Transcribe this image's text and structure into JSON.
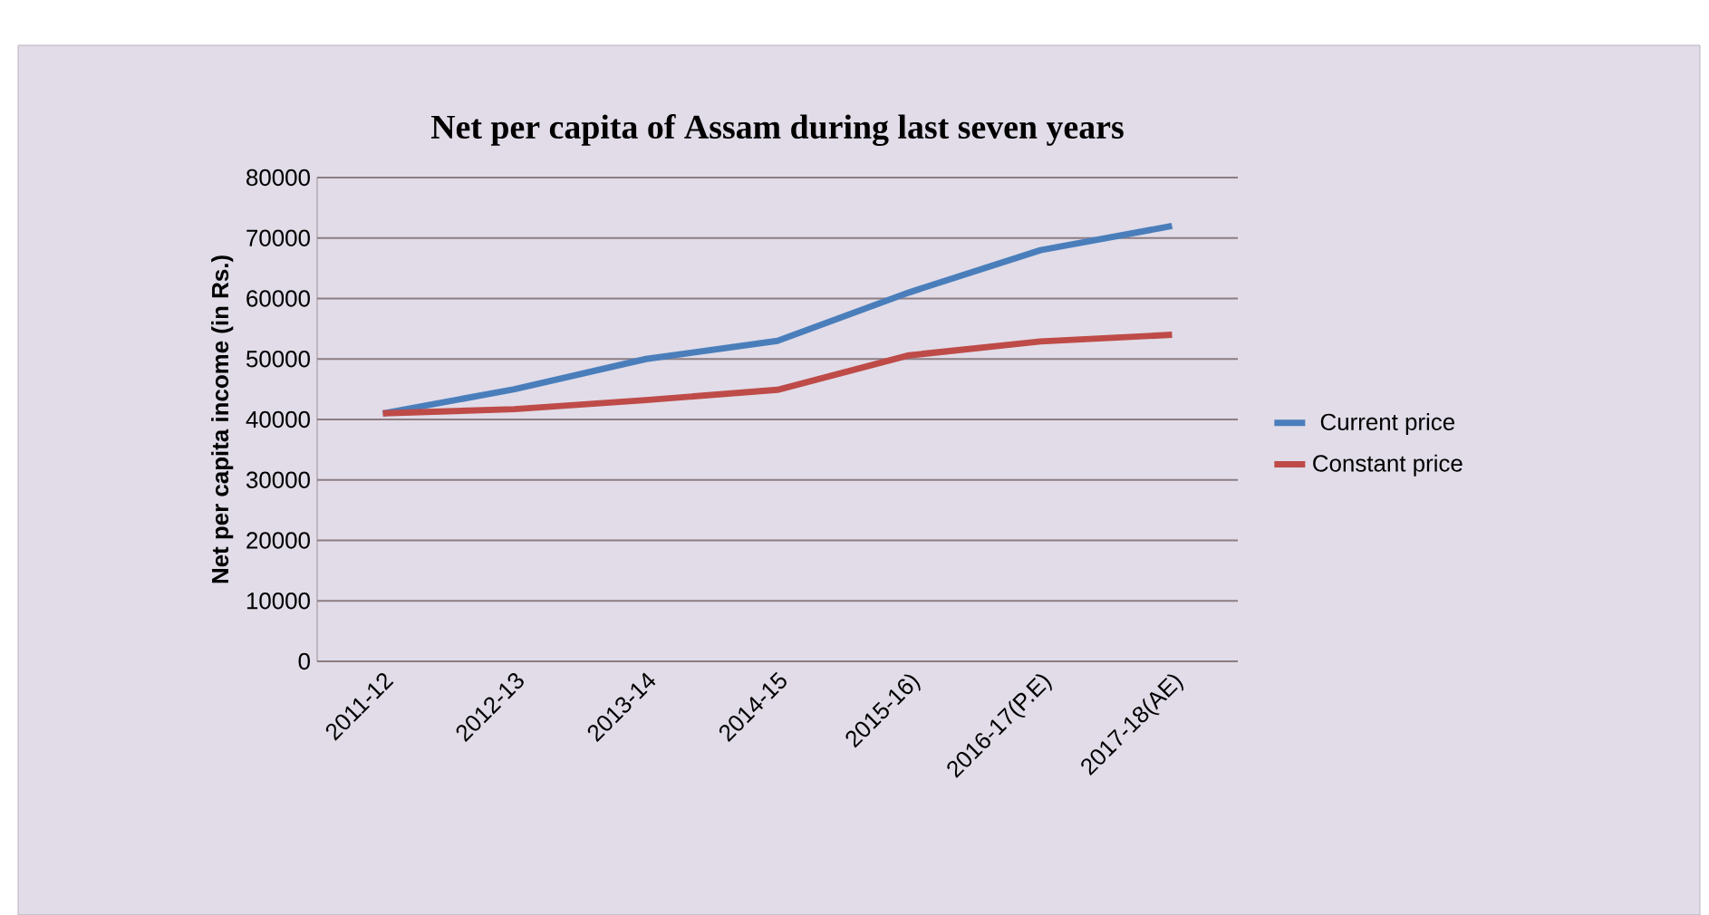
{
  "chart_data": {
    "type": "line",
    "title": "Net per capita of Assam during last seven years",
    "ylabel": "Net per capita income (in Rs.)",
    "categories": [
      "2011-12",
      "2012-13",
      "2013-14",
      "2014-15",
      "2015-16)",
      "2016-17(P.E)",
      "2017-18(AE)"
    ],
    "series": [
      {
        "name": "Current price",
        "color": "#4a7ebb",
        "values": [
          41000,
          45000,
          50000,
          53000,
          61000,
          68000,
          72000
        ]
      },
      {
        "name": "Constant price",
        "color": "#be4b48",
        "values": [
          41000,
          41700,
          43200,
          44900,
          50600,
          52900,
          54000
        ]
      }
    ],
    "ylim": [
      0,
      80000
    ],
    "yticks": [
      0,
      10000,
      20000,
      30000,
      40000,
      50000,
      60000,
      70000,
      80000
    ],
    "grid": "y",
    "legend": "right",
    "marker": "none",
    "line_style": "solid"
  }
}
